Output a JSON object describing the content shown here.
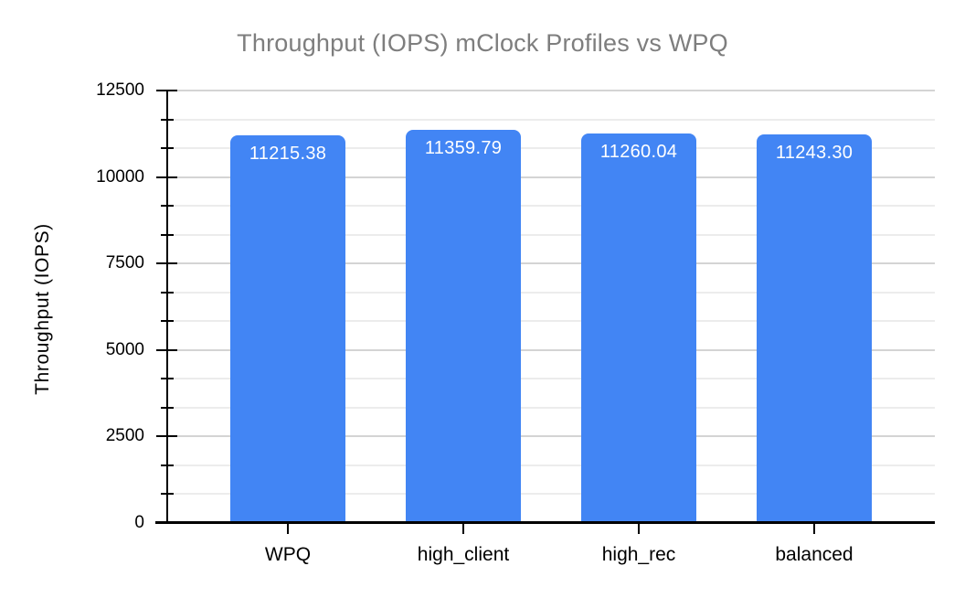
{
  "chart_data": {
    "type": "bar",
    "title": "Throughput (IOPS) mClock Profiles vs WPQ",
    "xlabel": "",
    "ylabel": "Throughput (IOPS)",
    "categories": [
      "WPQ",
      "high_client",
      "high_rec",
      "balanced"
    ],
    "values": [
      11215.38,
      11359.79,
      11260.04,
      11243.3
    ],
    "value_labels": [
      "11215.38",
      "11359.79",
      "11260.04",
      "11243.30"
    ],
    "ylim": [
      0,
      12500
    ],
    "y_major_ticks": [
      0,
      2500,
      5000,
      7500,
      10000,
      12500
    ],
    "y_tick_labels": [
      "0",
      "2500",
      "5000",
      "7500",
      "10000",
      "12500"
    ],
    "minor_gridlines_between_majors": 2,
    "grid": true,
    "legend": "none",
    "colors": {
      "bar": "#4285F4",
      "title_text": "#7E7E7E",
      "axis_text": "#000000",
      "value_label_text": "#FFFFFF",
      "major_gridline": "#D4D4D4",
      "minor_gridline": "#ECECEC",
      "axis_line": "#000000",
      "background": "#FFFFFF"
    }
  }
}
